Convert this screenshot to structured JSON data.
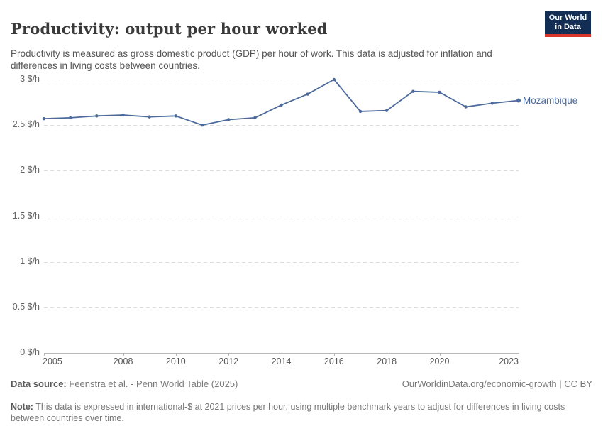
{
  "header": {
    "title": "Productivity: output per hour worked",
    "subtitle": "Productivity is measured as gross domestic product (GDP) per hour of work. This data is adjusted for inflation and differences in living costs between countries.",
    "logo": {
      "line1": "Our World",
      "line2": "in Data",
      "bg_color": "#132e54",
      "accent_color": "#d8352b"
    }
  },
  "chart_data": {
    "type": "line",
    "title": "Productivity: output per hour worked",
    "x": [
      2005,
      2006,
      2007,
      2008,
      2009,
      2010,
      2011,
      2012,
      2013,
      2014,
      2015,
      2016,
      2017,
      2018,
      2019,
      2020,
      2021,
      2022,
      2023
    ],
    "series": [
      {
        "name": "Mozambique",
        "color": "#4c6a9c",
        "values": [
          2.57,
          2.58,
          2.6,
          2.61,
          2.59,
          2.6,
          2.5,
          2.56,
          2.58,
          2.72,
          2.84,
          3.0,
          2.65,
          2.66,
          2.87,
          2.86,
          2.7,
          2.74,
          2.77
        ]
      }
    ],
    "xticks": [
      2005,
      2008,
      2010,
      2012,
      2014,
      2016,
      2018,
      2020,
      2023
    ],
    "yticks": [
      {
        "value": 0,
        "label": "0 $/h"
      },
      {
        "value": 0.5,
        "label": "0.5 $/h"
      },
      {
        "value": 1,
        "label": "1 $/h"
      },
      {
        "value": 1.5,
        "label": "1.5 $/h"
      },
      {
        "value": 2,
        "label": "2 $/h"
      },
      {
        "value": 2.5,
        "label": "2.5 $/h"
      },
      {
        "value": 3,
        "label": "3 $/h"
      }
    ],
    "xlim": [
      2005,
      2023
    ],
    "ylim": [
      0,
      3
    ],
    "grid": "horizontal-dashed",
    "legend_position": "end-of-line"
  },
  "footer": {
    "datasource_label": "Data source:",
    "datasource_text": "Feenstra et al. - Penn World Table (2025)",
    "link_text": "OurWorldinData.org/economic-growth | CC BY",
    "note_label": "Note:",
    "note_text": "This data is expressed in international-$ at 2021 prices per hour, using multiple benchmark years to adjust for differences in living costs between countries over time."
  }
}
